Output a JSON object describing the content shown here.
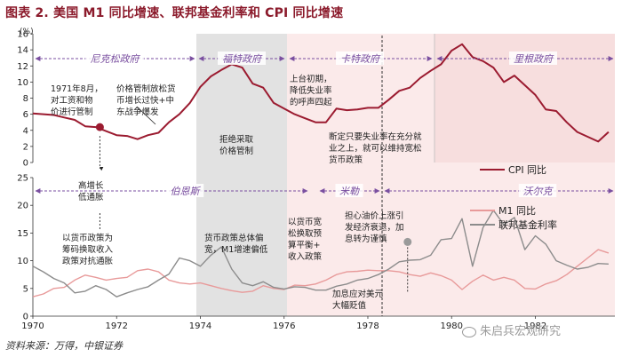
{
  "title": "图表 2. 美国 M1 同比增速、联邦基金利率和 CPI 同比增速",
  "source": "资料来源：万得，中银证券",
  "watermark": "朱启兵宏观研究",
  "chart_data": [
    {
      "type": "line",
      "panel": "top",
      "y_unit": "(%)",
      "ylim": [
        0,
        16
      ],
      "yticks": [
        0,
        2,
        4,
        6,
        8,
        10,
        12,
        14,
        16
      ],
      "xlim": [
        1970,
        1983.9
      ],
      "series": [
        {
          "name": "CPI 同比",
          "color": "#9b1b30",
          "x": [
            1970.0,
            1970.25,
            1970.5,
            1970.75,
            1971.0,
            1971.25,
            1971.5,
            1971.75,
            1972.0,
            1972.25,
            1972.5,
            1972.75,
            1973.0,
            1973.25,
            1973.5,
            1973.75,
            1974.0,
            1974.25,
            1974.5,
            1974.75,
            1975.0,
            1975.25,
            1975.5,
            1975.75,
            1976.0,
            1976.25,
            1976.5,
            1976.75,
            1977.0,
            1977.25,
            1977.5,
            1977.75,
            1978.0,
            1978.25,
            1978.5,
            1978.75,
            1979.0,
            1979.25,
            1979.5,
            1979.75,
            1980.0,
            1980.25,
            1980.5,
            1980.75,
            1981.0,
            1981.25,
            1981.5,
            1981.75,
            1982.0,
            1982.25,
            1982.5,
            1982.75,
            1983.0,
            1983.25,
            1983.5,
            1983.75
          ],
          "values": [
            6.1,
            6.0,
            5.9,
            5.6,
            5.3,
            4.5,
            4.4,
            3.9,
            3.4,
            3.3,
            2.9,
            3.4,
            3.7,
            5.0,
            6.0,
            7.4,
            9.4,
            10.7,
            11.5,
            12.2,
            11.8,
            9.8,
            9.3,
            7.4,
            6.7,
            6.0,
            5.5,
            5.0,
            5.0,
            6.7,
            6.5,
            6.6,
            6.8,
            6.8,
            7.8,
            8.9,
            9.3,
            10.5,
            11.4,
            12.2,
            13.9,
            14.7,
            13.1,
            12.6,
            11.8,
            10.0,
            10.8,
            9.6,
            8.4,
            6.6,
            6.4,
            5.0,
            3.8,
            3.2,
            2.6,
            3.8
          ]
        }
      ],
      "annotations": [
        {
          "text": "1971年8月，对工资和物价进行管制",
          "x": 1971.6,
          "y": 4.4
        },
        {
          "text": "价格管制放松货币增长过快+中东战争爆发",
          "x": 1972.9
        },
        {
          "text": "拒绝采取价格管制",
          "x": 1974.9
        },
        {
          "text": "上台初期，降低失业率的呼声四起",
          "x": 1977.25
        },
        {
          "text": "断定只要失业率在充分就业之上，就可以维持宽松货币政策",
          "x": 1978.1
        }
      ],
      "eras": [
        "尼克松政府",
        "福特政府",
        "卡特政府",
        "里根政府"
      ],
      "legend": "right"
    },
    {
      "type": "line",
      "panel": "bottom",
      "ylim": [
        0,
        25
      ],
      "yticks": [
        0,
        5,
        10,
        15,
        20,
        25
      ],
      "xlim": [
        1970,
        1983.9
      ],
      "xticks": [
        1970,
        1972,
        1974,
        1976,
        1978,
        1980,
        1982
      ],
      "series": [
        {
          "name": "M1 同比",
          "color": "#e89a9a",
          "x": [
            1970.0,
            1970.25,
            1970.5,
            1970.75,
            1971.0,
            1971.25,
            1971.5,
            1971.75,
            1972.0,
            1972.25,
            1972.5,
            1972.75,
            1973.0,
            1973.25,
            1973.5,
            1973.75,
            1974.0,
            1974.25,
            1974.5,
            1974.75,
            1975.0,
            1975.25,
            1975.5,
            1975.75,
            1976.0,
            1976.25,
            1976.5,
            1976.75,
            1977.0,
            1977.25,
            1977.5,
            1977.75,
            1978.0,
            1978.25,
            1978.5,
            1978.75,
            1979.0,
            1979.25,
            1979.5,
            1979.75,
            1980.0,
            1980.25,
            1980.5,
            1980.75,
            1981.0,
            1981.25,
            1981.5,
            1981.75,
            1982.0,
            1982.25,
            1982.5,
            1982.75,
            1983.0,
            1983.25,
            1983.5,
            1983.75
          ],
          "values": [
            3.5,
            4.0,
            5.0,
            5.2,
            6.5,
            7.4,
            7.0,
            6.5,
            6.8,
            7.0,
            8.2,
            8.5,
            8.0,
            6.5,
            6.0,
            5.8,
            6.0,
            5.5,
            5.0,
            4.6,
            4.3,
            4.5,
            5.5,
            5.0,
            4.8,
            5.6,
            5.5,
            5.8,
            6.5,
            7.5,
            8.0,
            8.1,
            8.3,
            8.2,
            8.2,
            8.0,
            7.5,
            7.2,
            7.8,
            7.3,
            6.5,
            4.8,
            6.3,
            7.4,
            6.5,
            7.0,
            6.5,
            5.0,
            4.9,
            5.8,
            6.4,
            7.5,
            9.0,
            10.5,
            12.0,
            11.4
          ]
        },
        {
          "name": "联邦基金利率",
          "color": "#8c8c8c",
          "x": [
            1970.0,
            1970.25,
            1970.5,
            1970.75,
            1971.0,
            1971.25,
            1971.5,
            1971.75,
            1972.0,
            1972.25,
            1972.5,
            1972.75,
            1973.0,
            1973.25,
            1973.5,
            1973.75,
            1974.0,
            1974.25,
            1974.5,
            1974.75,
            1975.0,
            1975.25,
            1975.5,
            1975.75,
            1976.0,
            1976.25,
            1976.5,
            1976.75,
            1977.0,
            1977.25,
            1977.5,
            1977.75,
            1978.0,
            1978.25,
            1978.5,
            1978.75,
            1979.0,
            1979.25,
            1979.5,
            1979.75,
            1980.0,
            1980.25,
            1980.5,
            1980.75,
            1981.0,
            1981.25,
            1981.5,
            1981.75,
            1982.0,
            1982.25,
            1982.5,
            1982.75,
            1983.0,
            1983.25,
            1983.5,
            1983.75
          ],
          "values": [
            9.0,
            8.0,
            6.8,
            6.0,
            4.2,
            4.5,
            5.5,
            4.8,
            3.5,
            4.2,
            4.8,
            5.3,
            6.5,
            7.6,
            10.5,
            10.0,
            9.0,
            11.0,
            12.5,
            8.5,
            6.0,
            5.5,
            6.2,
            5.2,
            4.9,
            5.3,
            5.2,
            4.7,
            4.7,
            5.4,
            5.8,
            6.5,
            6.8,
            7.5,
            8.5,
            9.8,
            10.1,
            10.2,
            11.0,
            13.8,
            14.0,
            17.6,
            9.0,
            16.0,
            19.1,
            16.5,
            17.8,
            12.0,
            14.5,
            13.0,
            10.0,
            9.2,
            8.5,
            8.8,
            9.5,
            9.4
          ]
        }
      ],
      "annotations": [
        {
          "text": "高增长低通胀",
          "x": 1971.6
        },
        {
          "text": "以货币政策为筹码换取收入政策对抗通胀",
          "x": 1971.0
        },
        {
          "text": "货币政策总体偏宽，M1增速偏低",
          "x": 1974.9
        },
        {
          "text": "以货币宽松换取预算平衡+收入政策",
          "x": 1977.25
        },
        {
          "text": "担心油价上涨引发经济衰退，加息转为谨慎",
          "x": 1978.7
        },
        {
          "text": "加息应对美元大幅贬值",
          "x": 1978.95,
          "y": 7.0
        }
      ],
      "eras": [
        "伯恩斯",
        "米勒",
        "沃尔克"
      ],
      "legend": "right"
    }
  ]
}
